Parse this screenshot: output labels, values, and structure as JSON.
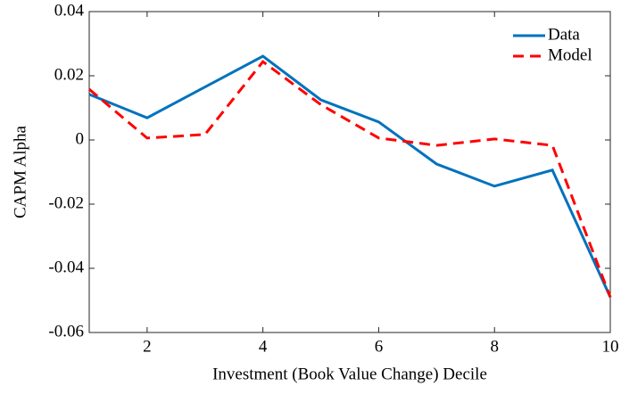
{
  "chart_data": {
    "type": "line",
    "xlabel": "Investment (Book Value Change) Decile",
    "ylabel": "CAPM Alpha",
    "x": [
      1,
      2,
      3,
      4,
      5,
      6,
      7,
      8,
      9,
      10
    ],
    "series": [
      {
        "name": "Data",
        "color": "#0072bd",
        "dash": "solid",
        "values": [
          0.0142,
          0.0069,
          0.0165,
          0.0261,
          0.0125,
          0.0056,
          -0.0075,
          -0.0144,
          -0.0094,
          -0.049
        ]
      },
      {
        "name": "Model",
        "color": "#ff0000",
        "dash": "dashed",
        "values": [
          0.0158,
          0.0006,
          0.0017,
          0.0244,
          0.011,
          0.0006,
          -0.0017,
          0.0003,
          -0.0017,
          -0.049
        ]
      }
    ],
    "xlim": [
      1,
      10
    ],
    "xticks": [
      2,
      4,
      6,
      8,
      10
    ],
    "ylim": [
      -0.06,
      0.04
    ],
    "yticks": [
      -0.06,
      -0.04,
      -0.02,
      0,
      0.02,
      0.04
    ],
    "grid": false,
    "legend": "top-right"
  }
}
